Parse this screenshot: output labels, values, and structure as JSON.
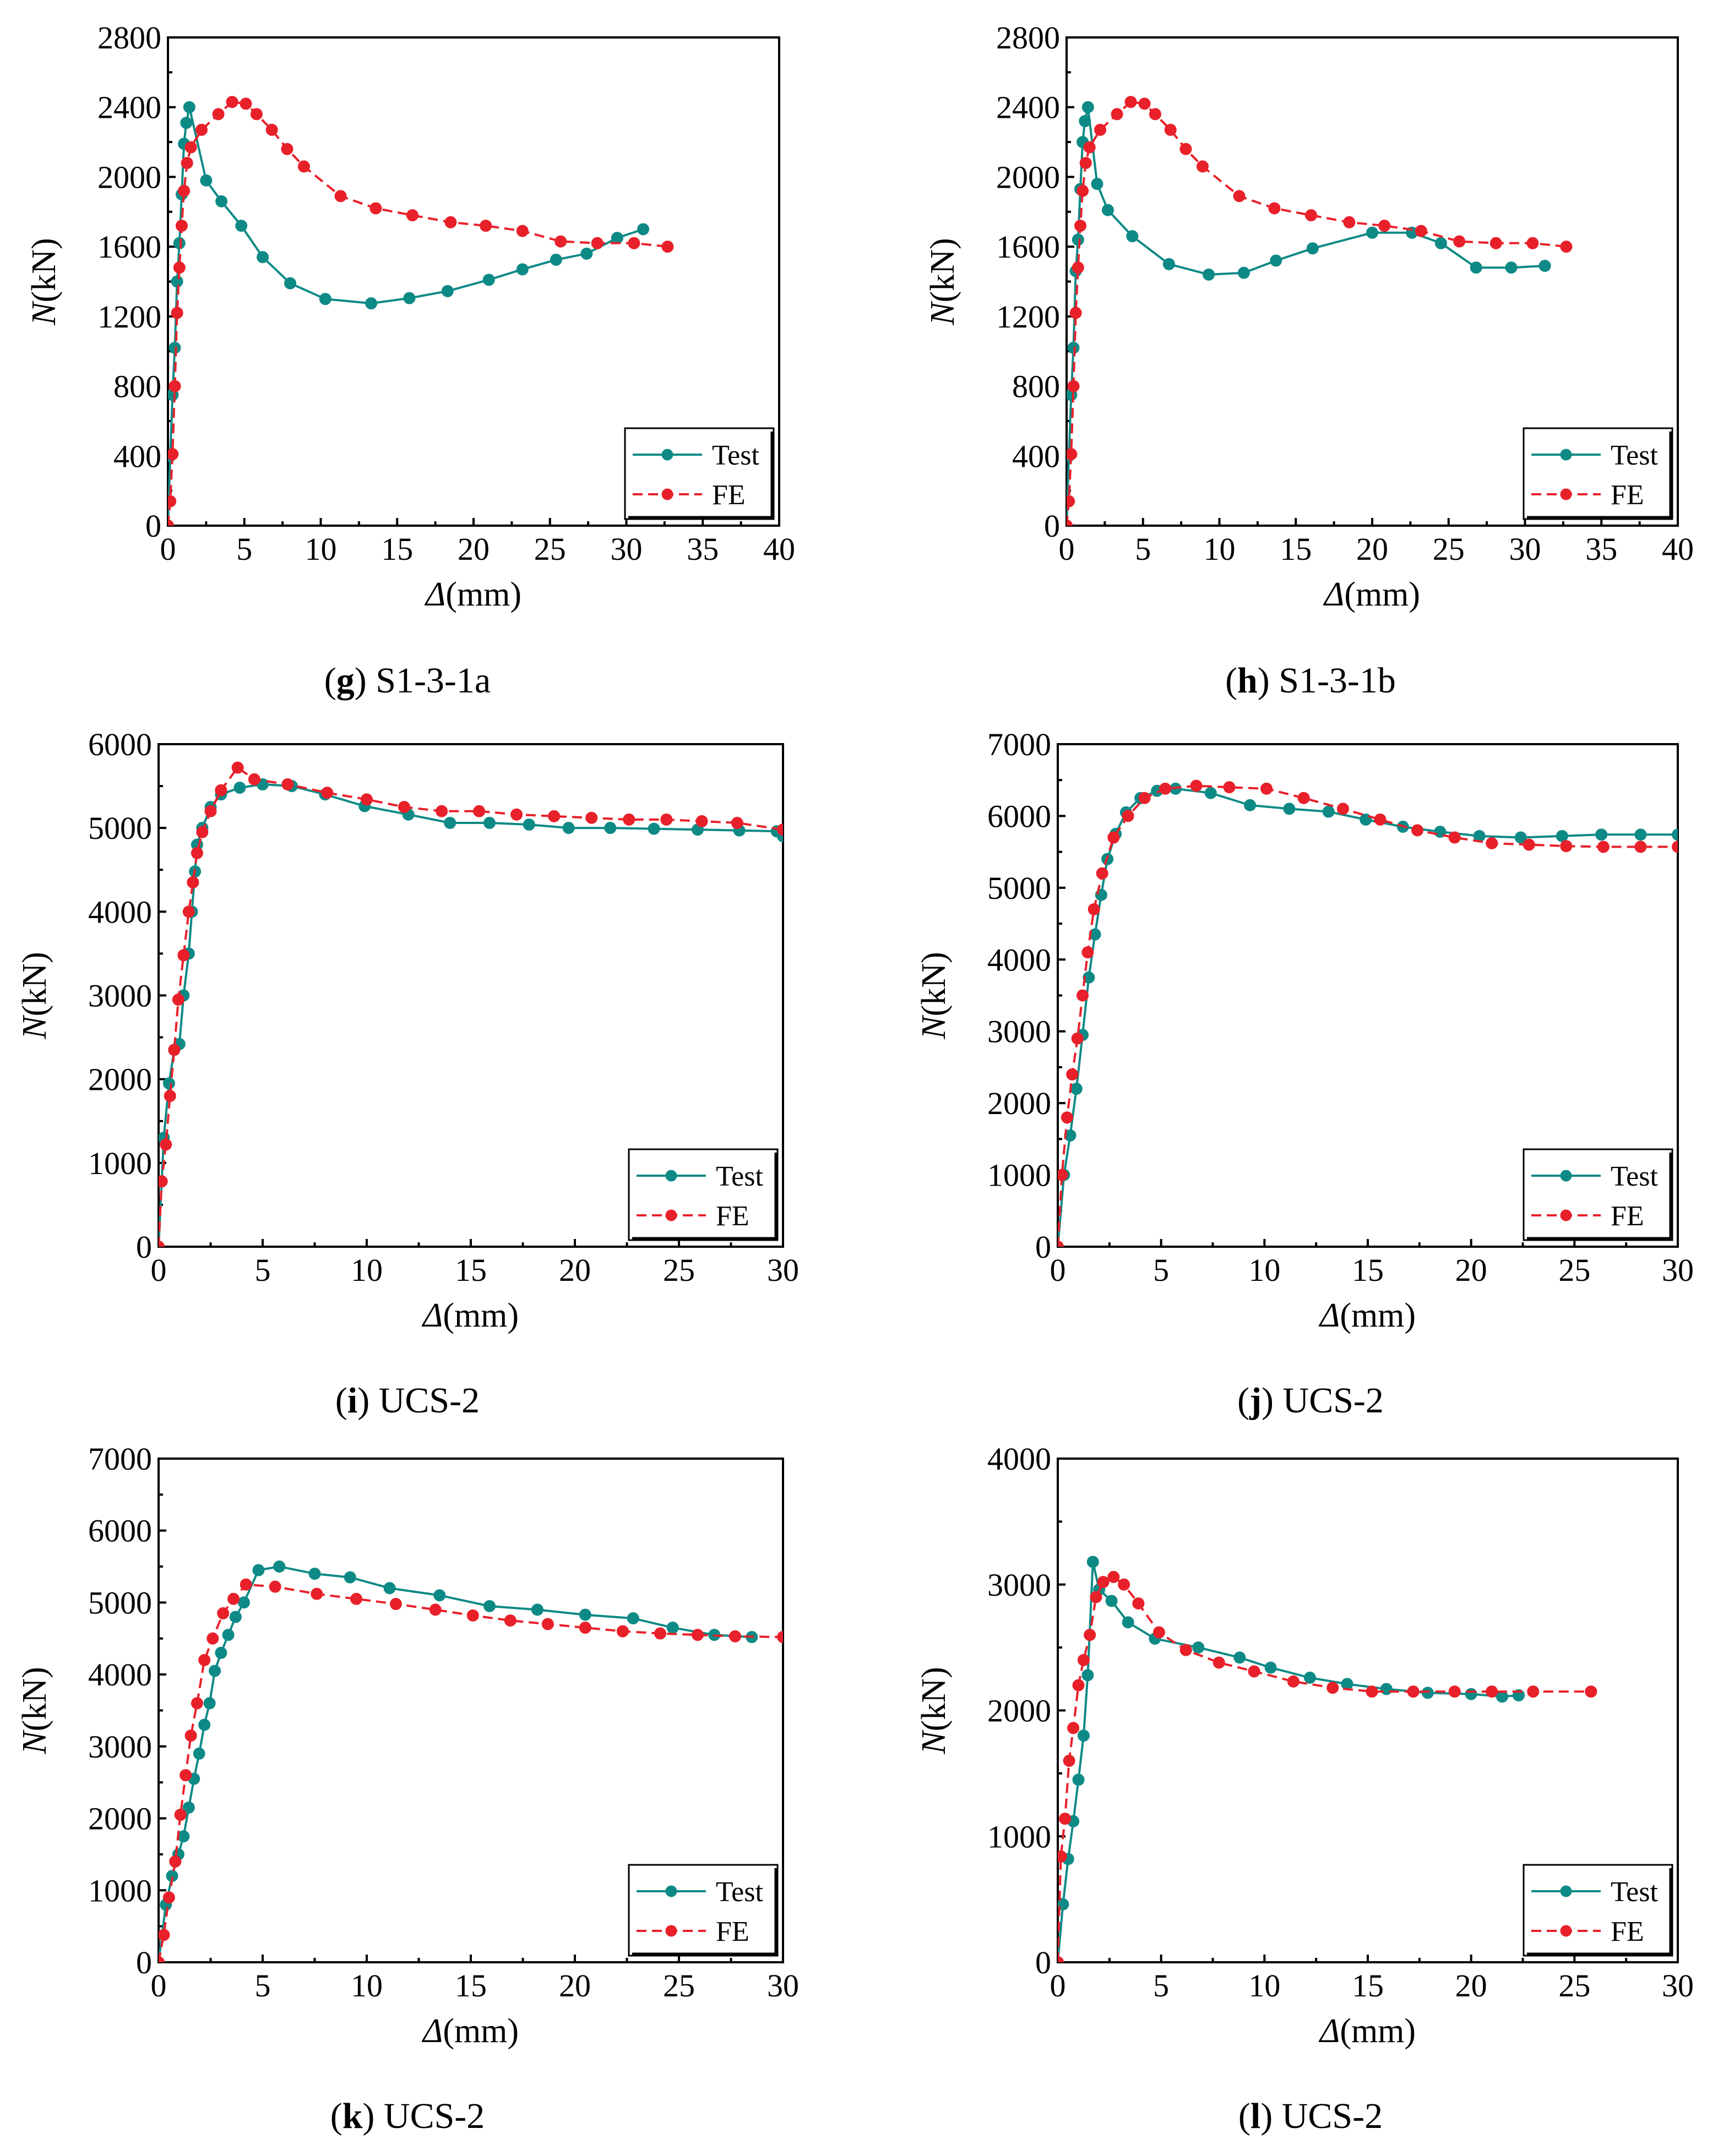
{
  "colors": {
    "test": "#0e8a86",
    "fe": "#e8202a",
    "axis": "#000000"
  },
  "chart_data": [
    {
      "type": "line",
      "caption": {
        "letter": "g",
        "text": ") S1-3-1a",
        "open": "("
      },
      "xlabel": {
        "symbol": "Δ",
        "unit": "(mm)"
      },
      "ylabel": {
        "symbol": "N",
        "unit": "(kN)"
      },
      "xlim": [
        0,
        40
      ],
      "ylim": [
        0,
        2800
      ],
      "xticks": [
        0,
        5,
        10,
        15,
        20,
        25,
        30,
        35,
        40
      ],
      "yticks": [
        0,
        400,
        800,
        1200,
        1600,
        2000,
        2400,
        2800
      ],
      "legend": "bottom-right",
      "series": [
        {
          "name": "Test",
          "style": "solid",
          "x": [
            0,
            0.15,
            0.3,
            0.45,
            0.6,
            0.75,
            0.9,
            1.05,
            1.2,
            1.4,
            2.5,
            3.5,
            4.8,
            6.2,
            8,
            10.3,
            13.3,
            15.8,
            18.3,
            21,
            23.2,
            25.4,
            27.4,
            29.4,
            31.1
          ],
          "y": [
            0,
            400,
            750,
            1020,
            1400,
            1620,
            1900,
            2190,
            2310,
            2400,
            1980,
            1860,
            1720,
            1540,
            1390,
            1300,
            1275,
            1305,
            1345,
            1410,
            1470,
            1525,
            1560,
            1650,
            1700
          ]
        },
        {
          "name": "FE",
          "style": "dashed",
          "x": [
            0,
            0.15,
            0.3,
            0.45,
            0.6,
            0.75,
            0.9,
            1.05,
            1.25,
            1.5,
            2.2,
            3.3,
            4.2,
            5.1,
            5.8,
            6.8,
            7.8,
            8.9,
            11.3,
            13.6,
            16,
            18.5,
            20.8,
            23.2,
            25.7,
            28.1,
            30.5,
            32.7
          ],
          "y": [
            0,
            140,
            410,
            800,
            1220,
            1480,
            1720,
            1920,
            2080,
            2170,
            2270,
            2360,
            2430,
            2420,
            2360,
            2270,
            2160,
            2060,
            1890,
            1820,
            1780,
            1740,
            1720,
            1690,
            1630,
            1620,
            1620,
            1600
          ]
        }
      ]
    },
    {
      "type": "line",
      "caption": {
        "letter": "h",
        "text": ") S1-3-1b",
        "open": "("
      },
      "xlabel": {
        "symbol": "Δ",
        "unit": "(mm)"
      },
      "ylabel": {
        "symbol": "N",
        "unit": "(kN)"
      },
      "xlim": [
        0,
        40
      ],
      "ylim": [
        0,
        2800
      ],
      "xticks": [
        0,
        5,
        10,
        15,
        20,
        25,
        30,
        35,
        40
      ],
      "yticks": [
        0,
        400,
        800,
        1200,
        1600,
        2000,
        2400,
        2800
      ],
      "legend": "bottom-right",
      "series": [
        {
          "name": "Test",
          "style": "solid",
          "x": [
            0,
            0.15,
            0.3,
            0.45,
            0.6,
            0.75,
            0.9,
            1.05,
            1.2,
            1.4,
            2,
            2.7,
            4.3,
            6.7,
            9.3,
            11.6,
            13.7,
            16.1,
            20,
            22.6,
            24.5,
            26.8,
            29.1,
            31.3
          ],
          "y": [
            0,
            400,
            750,
            1020,
            1460,
            1640,
            1930,
            2200,
            2320,
            2400,
            1960,
            1810,
            1660,
            1500,
            1440,
            1450,
            1520,
            1590,
            1680,
            1680,
            1620,
            1480,
            1480,
            1490
          ]
        },
        {
          "name": "FE",
          "style": "dashed",
          "x": [
            0,
            0.15,
            0.3,
            0.45,
            0.6,
            0.75,
            0.9,
            1.05,
            1.25,
            1.5,
            2.2,
            3.3,
            4.2,
            5.1,
            5.8,
            6.8,
            7.8,
            8.9,
            11.3,
            13.6,
            16,
            18.5,
            20.8,
            23.2,
            25.7,
            28.1,
            30.5,
            32.7
          ],
          "y": [
            0,
            140,
            410,
            800,
            1220,
            1480,
            1720,
            1920,
            2080,
            2170,
            2270,
            2360,
            2430,
            2420,
            2360,
            2270,
            2160,
            2060,
            1890,
            1820,
            1780,
            1740,
            1720,
            1690,
            1630,
            1620,
            1620,
            1600
          ]
        }
      ]
    },
    {
      "type": "line",
      "caption": {
        "letter": "i",
        "text": ") UCS-2",
        "open": "("
      },
      "xlabel": {
        "symbol": "Δ",
        "unit": "(mm)"
      },
      "ylabel": {
        "symbol": "N",
        "unit": "(kN)"
      },
      "xlim": [
        0,
        30
      ],
      "ylim": [
        0,
        6000
      ],
      "xticks": [
        0,
        5,
        10,
        15,
        20,
        25,
        30
      ],
      "yticks": [
        0,
        1000,
        2000,
        3000,
        4000,
        5000,
        6000
      ],
      "legend": "bottom-right",
      "series": [
        {
          "name": "Test",
          "style": "solid",
          "x": [
            0,
            0.25,
            0.5,
            0.75,
            1,
            1.2,
            1.45,
            1.6,
            1.75,
            1.85,
            2.1,
            2.5,
            3,
            3.9,
            5,
            6.4,
            8,
            9.9,
            12,
            14,
            15.9,
            17.8,
            19.7,
            21.7,
            23.8,
            25.9,
            27.9,
            29.7,
            30
          ],
          "y": [
            0,
            1300,
            1950,
            2350,
            2420,
            3000,
            3500,
            4000,
            4480,
            4800,
            5000,
            5250,
            5400,
            5480,
            5520,
            5500,
            5400,
            5260,
            5160,
            5060,
            5060,
            5040,
            5000,
            5000,
            4990,
            4980,
            4970,
            4960,
            4900
          ]
        },
        {
          "name": "FE",
          "style": "dashed",
          "x": [
            0,
            0.15,
            0.35,
            0.55,
            0.75,
            0.95,
            1.2,
            1.45,
            1.65,
            1.85,
            2.1,
            2.5,
            3,
            3.8,
            4.6,
            6.2,
            8.1,
            10,
            11.8,
            13.6,
            15.4,
            17.2,
            19,
            20.8,
            22.6,
            24.4,
            26.1,
            27.8,
            30
          ],
          "y": [
            0,
            780,
            1220,
            1800,
            2350,
            2950,
            3480,
            4000,
            4350,
            4700,
            4950,
            5200,
            5450,
            5720,
            5580,
            5520,
            5420,
            5340,
            5250,
            5200,
            5200,
            5160,
            5140,
            5120,
            5100,
            5100,
            5080,
            5060,
            4980
          ]
        }
      ]
    },
    {
      "type": "line",
      "caption": {
        "letter": "j",
        "text": ") UCS-2",
        "open": "("
      },
      "xlabel": {
        "symbol": "Δ",
        "unit": "(mm)"
      },
      "ylabel": {
        "symbol": "N",
        "unit": "(kN)"
      },
      "xlim": [
        0,
        30
      ],
      "ylim": [
        0,
        7000
      ],
      "xticks": [
        0,
        5,
        10,
        15,
        20,
        25,
        30
      ],
      "yticks": [
        0,
        1000,
        2000,
        3000,
        4000,
        5000,
        6000,
        7000
      ],
      "legend": "bottom-right",
      "series": [
        {
          "name": "Test",
          "style": "solid",
          "x": [
            0,
            0.3,
            0.6,
            0.9,
            1.2,
            1.5,
            1.8,
            2.1,
            2.4,
            2.8,
            3.3,
            4,
            4.8,
            5.7,
            7.4,
            9.3,
            11.2,
            13.1,
            14.9,
            16.7,
            18.5,
            20.4,
            22.4,
            24.4,
            26.3,
            28.2,
            30
          ],
          "y": [
            0,
            1000,
            1550,
            2200,
            2950,
            3750,
            4350,
            4900,
            5400,
            5750,
            6050,
            6250,
            6350,
            6380,
            6320,
            6150,
            6100,
            6060,
            5950,
            5850,
            5780,
            5720,
            5700,
            5720,
            5740,
            5740,
            5740
          ]
        },
        {
          "name": "FE",
          "style": "dashed",
          "x": [
            0,
            0.2,
            0.45,
            0.7,
            0.95,
            1.2,
            1.45,
            1.75,
            2.15,
            2.7,
            3.4,
            4.2,
            5.2,
            6.7,
            8.3,
            10.1,
            11.9,
            13.8,
            15.6,
            17.4,
            19.2,
            21,
            22.8,
            24.6,
            26.4,
            28.2,
            30
          ],
          "y": [
            0,
            1000,
            1800,
            2400,
            2900,
            3500,
            4100,
            4700,
            5200,
            5700,
            6000,
            6250,
            6380,
            6420,
            6400,
            6380,
            6250,
            6100,
            5950,
            5800,
            5700,
            5620,
            5600,
            5580,
            5570,
            5570,
            5570
          ]
        }
      ]
    },
    {
      "type": "line",
      "caption": {
        "letter": "k",
        "text": ") UCS-2",
        "open": "("
      },
      "xlabel": {
        "symbol": "Δ",
        "unit": "(mm)"
      },
      "ylabel": {
        "symbol": "N",
        "unit": "(kN)"
      },
      "xlim": [
        0,
        30
      ],
      "ylim": [
        0,
        7000
      ],
      "xticks": [
        0,
        5,
        10,
        15,
        20,
        25,
        30
      ],
      "yticks": [
        0,
        1000,
        2000,
        3000,
        4000,
        5000,
        6000,
        7000
      ],
      "legend": "bottom-right",
      "series": [
        {
          "name": "Test",
          "style": "solid",
          "x": [
            0,
            0.35,
            0.65,
            0.95,
            1.2,
            1.45,
            1.7,
            1.95,
            2.2,
            2.45,
            2.7,
            3,
            3.35,
            3.7,
            4.1,
            4.8,
            5.8,
            7.5,
            9.2,
            11.1,
            13.5,
            15.9,
            18.2,
            20.5,
            22.8,
            24.7,
            26.7,
            28.5
          ],
          "y": [
            0,
            800,
            1200,
            1500,
            1750,
            2150,
            2550,
            2900,
            3300,
            3600,
            4050,
            4300,
            4550,
            4800,
            5000,
            5450,
            5500,
            5400,
            5350,
            5200,
            5100,
            4950,
            4900,
            4830,
            4780,
            4650,
            4550,
            4520
          ]
        },
        {
          "name": "FE",
          "style": "dashed",
          "x": [
            0,
            0.25,
            0.5,
            0.8,
            1.05,
            1.3,
            1.55,
            1.85,
            2.2,
            2.6,
            3.1,
            3.6,
            4.2,
            5.6,
            7.6,
            9.5,
            11.4,
            13.3,
            15.1,
            16.9,
            18.7,
            20.5,
            22.3,
            24.1,
            25.9,
            27.7,
            30
          ],
          "y": [
            0,
            380,
            900,
            1400,
            2050,
            2600,
            3150,
            3600,
            4200,
            4500,
            4850,
            5050,
            5250,
            5220,
            5120,
            5050,
            4980,
            4900,
            4820,
            4750,
            4700,
            4650,
            4600,
            4570,
            4550,
            4530,
            4520
          ]
        }
      ]
    },
    {
      "type": "line",
      "caption": {
        "letter": "l",
        "text": ") UCS-2",
        "open": "("
      },
      "xlabel": {
        "symbol": "Δ",
        "unit": "(mm)"
      },
      "ylabel": {
        "symbol": "N",
        "unit": "(kN)"
      },
      "xlim": [
        0,
        30
      ],
      "ylim": [
        0,
        4000
      ],
      "xticks": [
        0,
        5,
        10,
        15,
        20,
        25,
        30
      ],
      "yticks": [
        0,
        1000,
        2000,
        3000,
        4000
      ],
      "legend": "bottom-right",
      "series": [
        {
          "name": "Test",
          "style": "solid",
          "x": [
            0,
            0.25,
            0.5,
            0.75,
            1,
            1.25,
            1.45,
            1.7,
            2,
            2.6,
            3.4,
            4.7,
            6.8,
            8.8,
            10.3,
            12.2,
            14,
            15.9,
            17.9,
            20,
            21.5,
            22.3
          ],
          "y": [
            0,
            460,
            820,
            1120,
            1450,
            1800,
            2280,
            3180,
            2960,
            2870,
            2700,
            2570,
            2500,
            2420,
            2340,
            2260,
            2210,
            2170,
            2140,
            2130,
            2110,
            2120
          ]
        },
        {
          "name": "FE",
          "style": "dashed",
          "x": [
            0,
            0.15,
            0.35,
            0.55,
            0.75,
            1,
            1.25,
            1.55,
            1.85,
            2.2,
            2.7,
            3.2,
            3.9,
            4.9,
            6.2,
            7.8,
            9.5,
            11.4,
            13.3,
            15.2,
            17.2,
            19.2,
            21,
            23,
            25.8
          ],
          "y": [
            0,
            840,
            1140,
            1600,
            1860,
            2200,
            2400,
            2600,
            2900,
            3020,
            3060,
            3000,
            2850,
            2620,
            2480,
            2380,
            2310,
            2230,
            2180,
            2150,
            2150,
            2150,
            2150,
            2150,
            2150
          ]
        }
      ]
    }
  ]
}
